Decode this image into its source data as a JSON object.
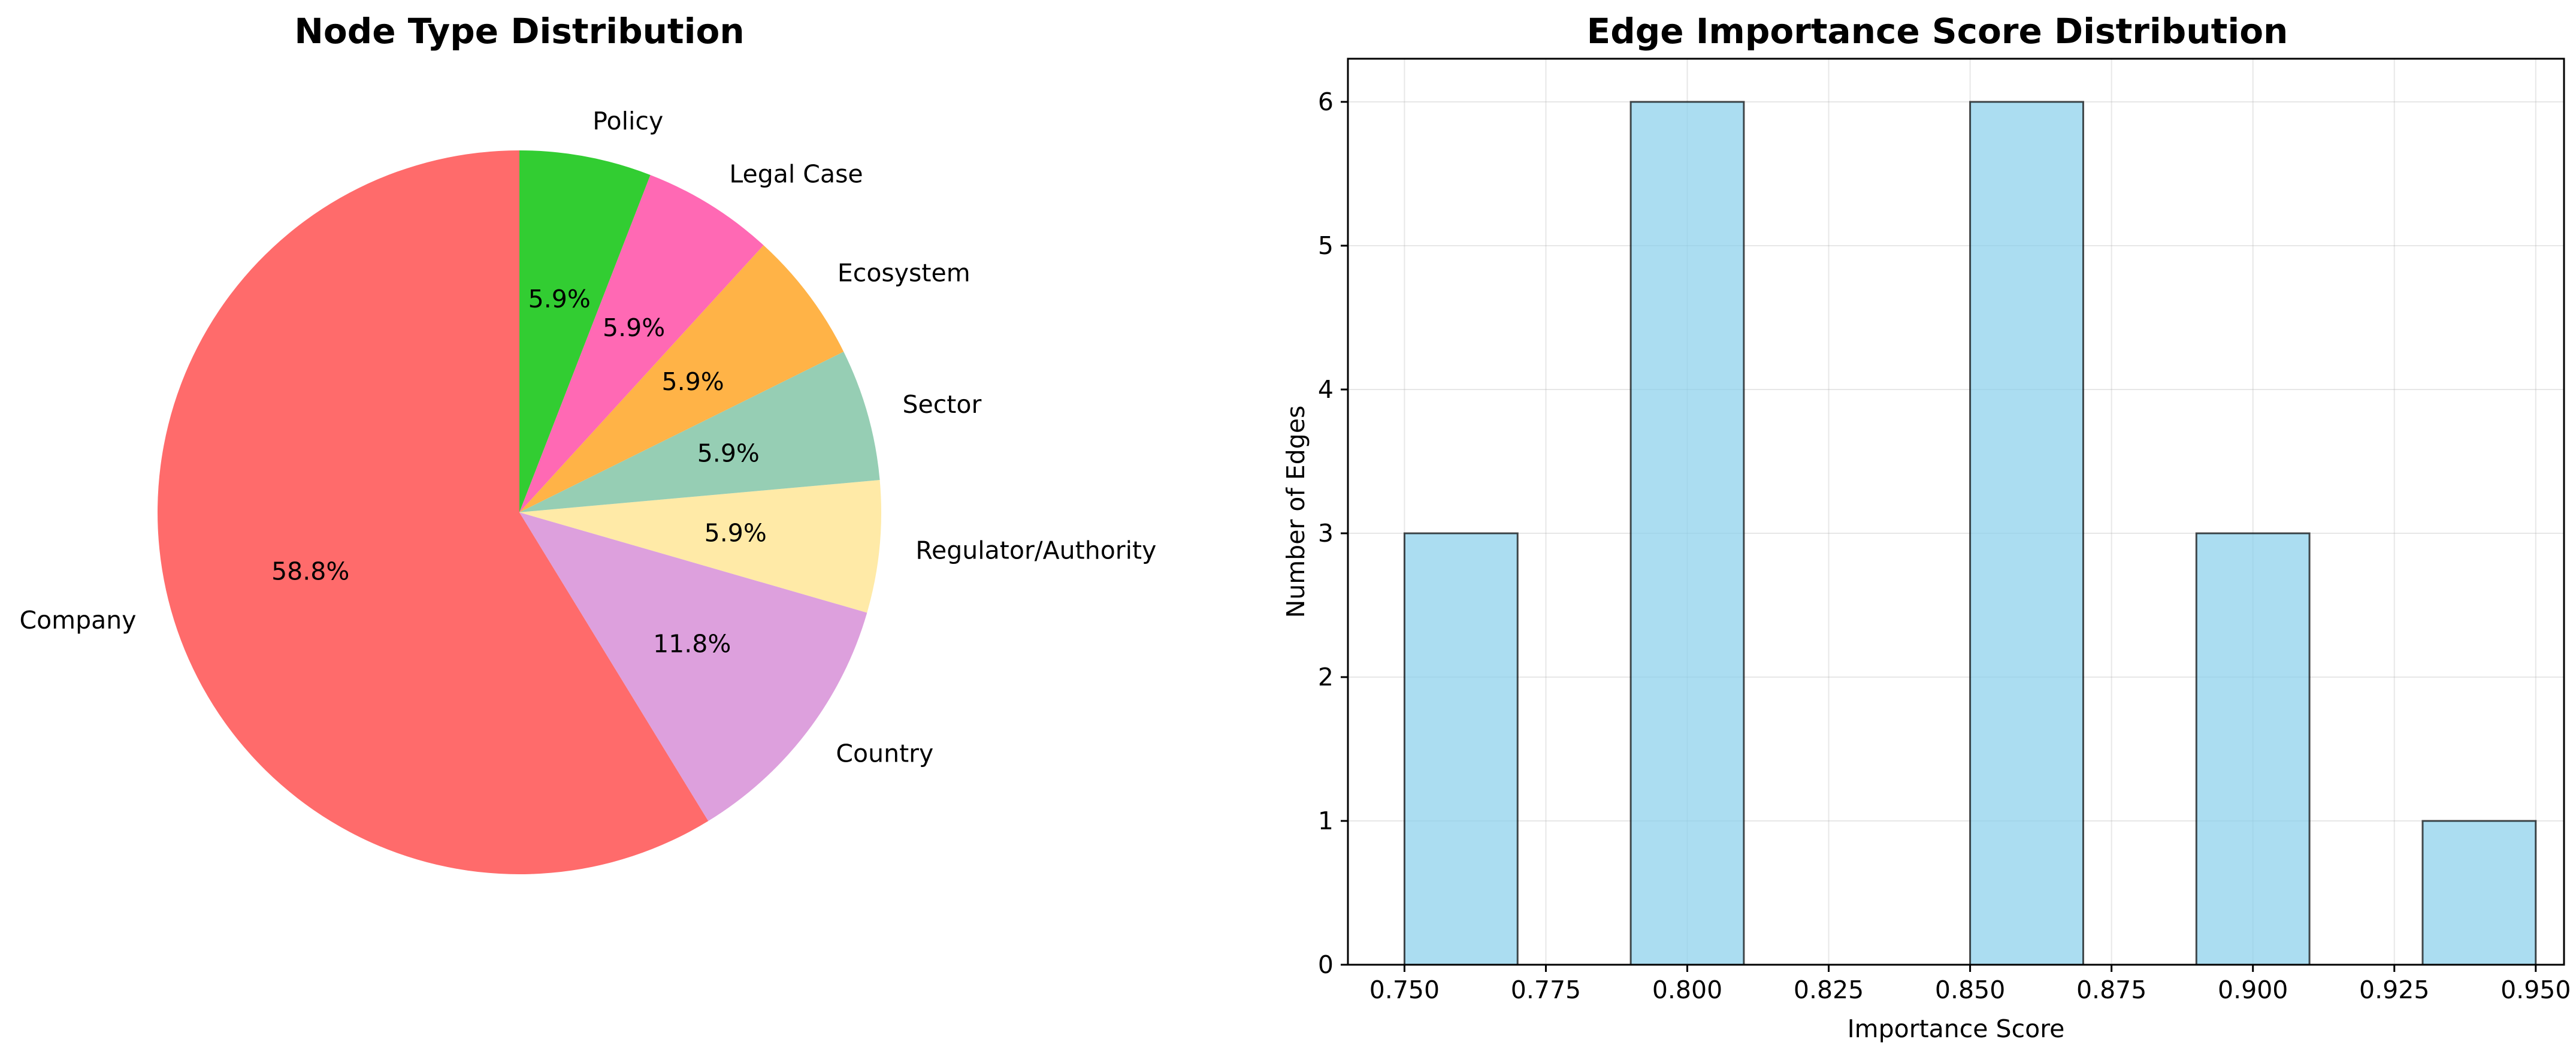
{
  "chart_data": [
    {
      "type": "pie",
      "title": "Node Type Distribution",
      "categories": [
        "Company",
        "Country",
        "Regulator/Authority",
        "Sector",
        "Ecosystem",
        "Legal Case",
        "Policy"
      ],
      "values": [
        58.8,
        11.8,
        5.9,
        5.9,
        5.9,
        5.9,
        5.9
      ],
      "value_labels": [
        "58.8%",
        "11.8%",
        "5.9%",
        "5.9%",
        "5.9%",
        "5.9%",
        "5.9%"
      ],
      "colors": [
        "#ff6b6b",
        "#dda0dd",
        "#ffeaa7",
        "#96ceb4",
        "#ffb347",
        "#ff69b4",
        "#32cd32"
      ],
      "start_angle_deg": 90,
      "direction": "counterclockwise"
    },
    {
      "type": "bar",
      "title": "Edge Importance Score Distribution",
      "xlabel": "Importance Score",
      "ylabel": "Number of Edges",
      "bins": [
        {
          "start": 0.75,
          "end": 0.77,
          "count": 3
        },
        {
          "start": 0.77,
          "end": 0.79,
          "count": 0
        },
        {
          "start": 0.79,
          "end": 0.81,
          "count": 6
        },
        {
          "start": 0.81,
          "end": 0.83,
          "count": 0
        },
        {
          "start": 0.83,
          "end": 0.85,
          "count": 0
        },
        {
          "start": 0.85,
          "end": 0.87,
          "count": 6
        },
        {
          "start": 0.87,
          "end": 0.89,
          "count": 0
        },
        {
          "start": 0.89,
          "end": 0.91,
          "count": 3
        },
        {
          "start": 0.91,
          "end": 0.93,
          "count": 0
        },
        {
          "start": 0.93,
          "end": 0.95,
          "count": 1
        }
      ],
      "xlim": [
        0.74,
        0.955
      ],
      "ylim": [
        0,
        6.3
      ],
      "xticks": [
        0.75,
        0.775,
        0.8,
        0.825,
        0.85,
        0.875,
        0.9,
        0.925,
        0.95
      ],
      "xtick_labels": [
        "0.750",
        "0.775",
        "0.800",
        "0.825",
        "0.850",
        "0.875",
        "0.900",
        "0.925",
        "0.950"
      ],
      "yticks": [
        0,
        1,
        2,
        3,
        4,
        5,
        6
      ],
      "ytick_labels": [
        "0",
        "1",
        "2",
        "3",
        "4",
        "5",
        "6"
      ],
      "grid": true,
      "bar_color": "#87ceeb",
      "bar_alpha": 0.7,
      "edge_color": "#000000"
    }
  ]
}
